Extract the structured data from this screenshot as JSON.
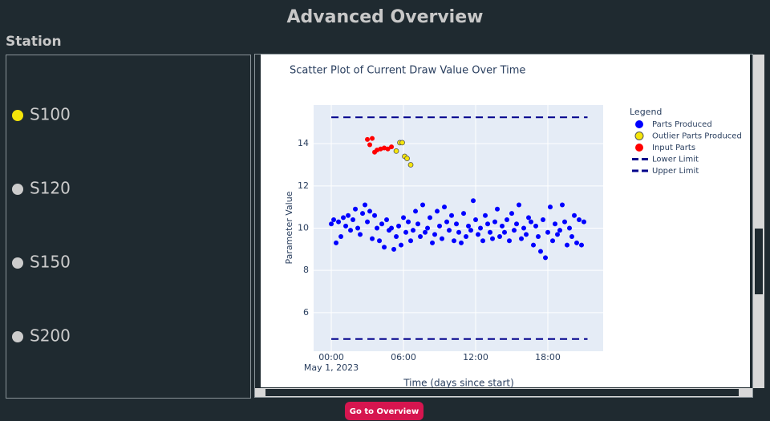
{
  "header": {
    "title": "Advanced Overview"
  },
  "sidebar": {
    "title": "Station",
    "stations": [
      {
        "label": "S100",
        "color": "#f5e50a"
      },
      {
        "label": "S120",
        "color": "#cccccc"
      },
      {
        "label": "S150",
        "color": "#cccccc"
      },
      {
        "label": "S200",
        "color": "#cccccc"
      }
    ]
  },
  "button": {
    "label": "Go to Overview"
  },
  "chart_data": {
    "type": "scatter",
    "title": "Scatter Plot of Current Draw Value Over Time",
    "x_label": "Time (days since start)",
    "y_label": "Parameter Value",
    "legend_title": "Legend",
    "xlim": [
      -1.47,
      22.6
    ],
    "ylim": [
      4.17,
      15.83
    ],
    "xticks": [
      {
        "value": 0,
        "label": "00:00"
      },
      {
        "value": 6,
        "label": "06:00"
      },
      {
        "value": 12,
        "label": "12:00"
      },
      {
        "value": 18,
        "label": "18:00"
      }
    ],
    "xtick_sublabel": "May 1, 2023",
    "yticks": [
      6,
      8,
      10,
      12,
      14
    ],
    "grid": true,
    "series": [
      {
        "name": "Parts Produced",
        "mode": "markers",
        "color": "#0000ff",
        "x": [
          0,
          0.2,
          0.4,
          0.6,
          0.8,
          1,
          1.2,
          1.4,
          1.6,
          1.8,
          2,
          2.2,
          2.4,
          2.6,
          2.8,
          3,
          3.2,
          3.4,
          3.6,
          3.8,
          4,
          4.2,
          4.4,
          4.6,
          4.8,
          5,
          5.2,
          5.4,
          5.6,
          5.8,
          6,
          6.2,
          6.4,
          6.6,
          6.8,
          7,
          7.2,
          7.4,
          7.6,
          7.8,
          8,
          8.2,
          8.4,
          8.6,
          8.8,
          9,
          9.2,
          9.4,
          9.6,
          9.8,
          10,
          10.2,
          10.4,
          10.6,
          10.8,
          11,
          11.2,
          11.4,
          11.6,
          11.8,
          12,
          12.2,
          12.4,
          12.6,
          12.8,
          13,
          13.2,
          13.4,
          13.6,
          13.8,
          14,
          14.2,
          14.4,
          14.6,
          14.8,
          15,
          15.2,
          15.4,
          15.6,
          15.8,
          16,
          16.2,
          16.4,
          16.6,
          16.8,
          17,
          17.2,
          17.4,
          17.6,
          17.8,
          18,
          18.2,
          18.4,
          18.6,
          18.8,
          19,
          19.2,
          19.4,
          19.6,
          19.8,
          20,
          20.2,
          20.4,
          20.6,
          20.8,
          21
        ],
        "values": [
          10.2,
          10.4,
          9.3,
          10.3,
          9.6,
          10.5,
          10.1,
          10.6,
          9.9,
          10.4,
          10.9,
          10.0,
          9.7,
          10.7,
          11.1,
          10.3,
          10.8,
          9.5,
          10.6,
          10.0,
          9.4,
          10.2,
          9.1,
          10.4,
          9.9,
          10.0,
          9.0,
          9.6,
          10.1,
          9.2,
          10.5,
          9.8,
          10.3,
          9.4,
          9.9,
          10.8,
          10.2,
          9.6,
          11.1,
          9.8,
          10.0,
          10.5,
          9.3,
          9.7,
          10.8,
          10.1,
          9.5,
          11.0,
          10.3,
          9.9,
          10.6,
          9.4,
          10.2,
          9.8,
          9.3,
          10.7,
          9.6,
          10.1,
          9.9,
          11.3,
          10.4,
          9.7,
          10.0,
          9.4,
          10.6,
          10.2,
          9.8,
          9.5,
          10.3,
          10.9,
          9.6,
          10.1,
          9.8,
          10.4,
          9.4,
          10.7,
          9.9,
          10.2,
          11.1,
          9.5,
          10.0,
          9.7,
          10.5,
          10.3,
          9.2,
          10.1,
          9.6,
          8.9,
          10.4,
          8.6,
          9.8,
          11.0,
          9.4,
          10.2,
          9.7,
          9.9,
          11.1,
          10.3,
          9.2,
          10.0,
          9.6,
          10.6,
          9.3,
          10.4,
          9.2,
          10.3
        ]
      },
      {
        "name": "Outlier Parts Produced",
        "mode": "markers",
        "color": "#f5e50a",
        "outline": "#555555",
        "x": [
          5.4,
          5.7,
          5.9,
          6.1,
          6.3,
          6.6
        ],
        "values": [
          13.65,
          14.05,
          14.05,
          13.4,
          13.3,
          13.0
        ]
      },
      {
        "name": "Input Parts",
        "mode": "markers",
        "color": "#ff0000",
        "x": [
          3.0,
          3.2,
          3.4,
          3.6,
          3.8,
          4.1,
          4.4,
          4.7,
          5.0
        ],
        "values": [
          14.2,
          13.95,
          14.25,
          13.6,
          13.7,
          13.75,
          13.8,
          13.75,
          13.85
        ]
      },
      {
        "name": "Lower Limit",
        "mode": "lines",
        "color": "#00008b",
        "x": [
          0,
          21.3
        ],
        "values": [
          4.75,
          4.75
        ]
      },
      {
        "name": "Upper Limit",
        "mode": "lines",
        "color": "#00008b",
        "x": [
          0,
          21.3
        ],
        "values": [
          15.25,
          15.25
        ]
      }
    ]
  }
}
